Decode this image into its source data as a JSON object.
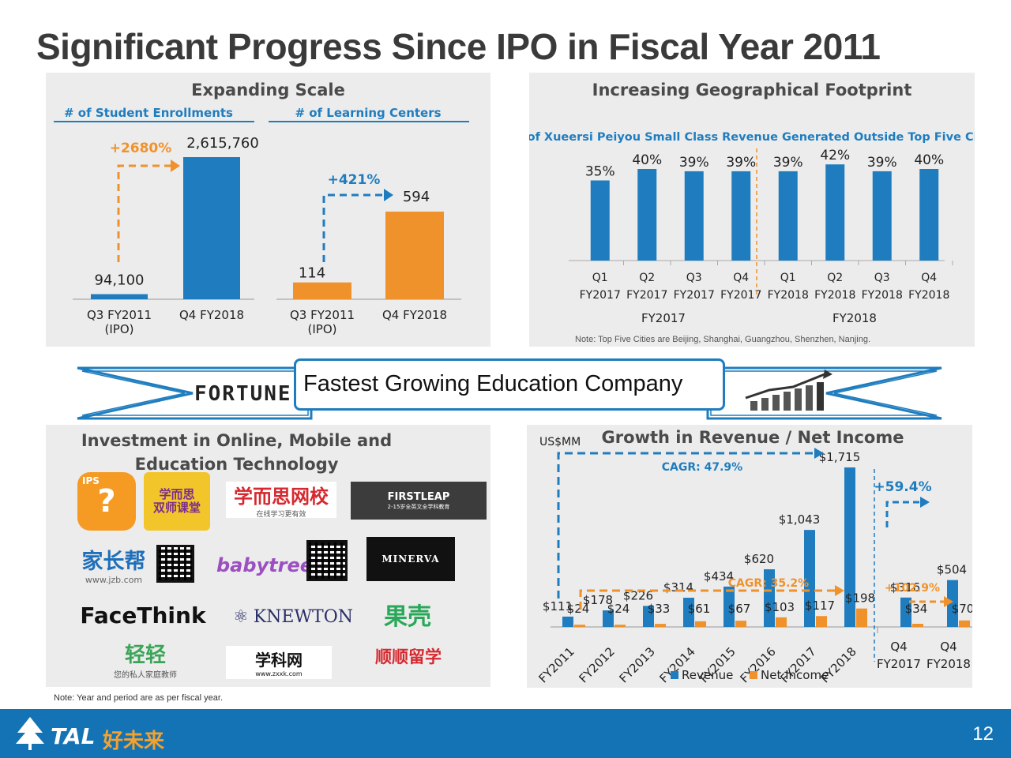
{
  "slide": {
    "title": "Significant Progress Since IPO in Fiscal Year 2011",
    "page_number": "12",
    "footnote": "Note: Year and period are as per fiscal year."
  },
  "banner": {
    "text": "Fastest Growing Education Company",
    "fortune_logo": "FORTUNE"
  },
  "footer": {
    "brand": "TAL",
    "brand_cn": "好未来"
  },
  "logos_panel": {
    "title_line1": "Investment in Online, Mobile and",
    "title_line2": "Education Technology",
    "logos": {
      "xueersi_wangxiao": "学而思网校",
      "xueersi_wangxiao_sub": "在线学习更有效",
      "firstleap": "FIRSTLEAP",
      "firstleap_sub": "2-15岁全英文全学科教育",
      "jiazhangbang": "家长帮",
      "jiazhangbang_url": "www.jzb.com",
      "babytree": "babytree",
      "minerva": "MINERVA",
      "facethink": "FaceThink",
      "knewton": "KNEWTON",
      "guoke": "果壳",
      "qingqing": "轻轻",
      "qingqing_sub": "您的私人家庭教师",
      "xuekewang": "学科网",
      "xuekewang_url": "www.zxxk.com",
      "shunshun": "顺顺留学",
      "xueersi_shuangshi": "学而思\n双师课堂",
      "ips": "IPS"
    }
  },
  "chart_data": [
    {
      "type": "bar",
      "title": "Expanding Scale",
      "subtitle": "# of Student Enrollments",
      "categories": [
        "Q3 FY2011\n(IPO)",
        "Q4 FY2018"
      ],
      "values": [
        94100,
        2615760
      ],
      "value_labels": [
        "94,100",
        "2,615,760"
      ],
      "growth_label": "+2680%",
      "color": "#1f7dbf",
      "ylim": [
        0,
        2615760
      ]
    },
    {
      "type": "bar",
      "title": "Expanding Scale",
      "subtitle": "# of Learning Centers",
      "categories": [
        "Q3 FY2011\n(IPO)",
        "Q4 FY2018"
      ],
      "values": [
        114,
        594
      ],
      "value_labels": [
        "114",
        "594"
      ],
      "growth_label": "+421%",
      "color": "#f0922b",
      "ylim": [
        0,
        594
      ]
    },
    {
      "type": "bar",
      "title": "Increasing Geographical Footprint",
      "subtitle": "% of Xueersi Peiyou Small Class Revenue Generated Outside Top Five Cities",
      "categories": [
        "Q1\nFY2017",
        "Q2\nFY2017",
        "Q3\nFY2017",
        "Q4\nFY2017",
        "Q1\nFY2018",
        "Q2\nFY2018",
        "Q3\nFY2018",
        "Q4\nFY2018"
      ],
      "values": [
        35,
        40,
        39,
        39,
        39,
        42,
        39,
        40
      ],
      "value_labels": [
        "35%",
        "40%",
        "39%",
        "39%",
        "39%",
        "42%",
        "39%",
        "40%"
      ],
      "group_labels": [
        "FY2017",
        "FY2018"
      ],
      "note": "Note: Top Five Cities are Beijing, Shanghai, Guangzhou, Shenzhen, Nanjing.",
      "color": "#1f7dbf",
      "ylim": [
        0,
        45
      ]
    },
    {
      "type": "bar",
      "title": "Growth in Revenue / Net Income",
      "ylabel": "US$MM",
      "categories": [
        "FY2011",
        "FY2012",
        "FY2013",
        "FY2014",
        "FY2015",
        "FY2016",
        "FY2017",
        "FY2018",
        "Q4\nFY2017",
        "Q4\nFY2018"
      ],
      "series": [
        {
          "name": "Revenue",
          "color": "#1f7dbf",
          "values": [
            111,
            178,
            226,
            314,
            434,
            620,
            1043,
            1715,
            316,
            504
          ],
          "labels": [
            "$111",
            "$178",
            "$226",
            "$314",
            "$434",
            "$620",
            "$1,043",
            "$1,715",
            "$316",
            "$504"
          ]
        },
        {
          "name": "Net Income",
          "color": "#f0922b",
          "values": [
            24,
            24,
            33,
            61,
            67,
            103,
            117,
            198,
            34,
            70
          ],
          "labels": [
            "$24",
            "$24",
            "$33",
            "$61",
            "$67",
            "$103",
            "$117",
            "$198",
            "$34",
            "$70"
          ]
        }
      ],
      "annotations": {
        "revenue_cagr": "CAGR: 47.9%",
        "net_income_cagr": "CAGR: 35.2%",
        "q4_revenue_growth": "+59.4%",
        "q4_net_income_growth": "+102.9%"
      },
      "ylim": [
        0,
        1715
      ]
    }
  ]
}
